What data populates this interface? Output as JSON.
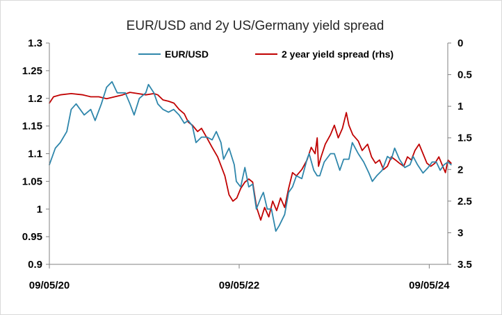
{
  "chart_data": {
    "type": "line",
    "title": "EUR/USD and 2y US/Germany yield spread",
    "xlabel": "",
    "ylabel": "",
    "x_ticks": [
      "09/05/20",
      "09/05/22",
      "09/05/24"
    ],
    "x_range": [
      "2020-05-09",
      "2024-08-01"
    ],
    "ylim_left": [
      0.9,
      1.3
    ],
    "y_ticks_left": [
      "0.9",
      "0.95",
      "1",
      "1.05",
      "1.1",
      "1.15",
      "1.2",
      "1.25",
      "1.3"
    ],
    "ylim_right": [
      0,
      3.5
    ],
    "y_ticks_right": [
      "0",
      "0.5",
      "1",
      "1.5",
      "2",
      "2.5",
      "3",
      "3.5"
    ],
    "right_axis_inverted": true,
    "grid": false,
    "legend_position": "top-center",
    "series": [
      {
        "name": "EUR/USD",
        "axis": "left",
        "color": "#2e86ab",
        "points": [
          [
            "2020-05-09",
            1.08
          ],
          [
            "2020-06-01",
            1.11
          ],
          [
            "2020-06-20",
            1.12
          ],
          [
            "2020-07-15",
            1.14
          ],
          [
            "2020-08-01",
            1.18
          ],
          [
            "2020-08-20",
            1.19
          ],
          [
            "2020-09-20",
            1.17
          ],
          [
            "2020-10-15",
            1.18
          ],
          [
            "2020-11-01",
            1.16
          ],
          [
            "2020-11-25",
            1.19
          ],
          [
            "2020-12-15",
            1.22
          ],
          [
            "2021-01-05",
            1.23
          ],
          [
            "2021-01-25",
            1.21
          ],
          [
            "2021-02-25",
            1.21
          ],
          [
            "2021-03-15",
            1.19
          ],
          [
            "2021-03-31",
            1.17
          ],
          [
            "2021-04-20",
            1.2
          ],
          [
            "2021-05-15",
            1.21
          ],
          [
            "2021-05-25",
            1.225
          ],
          [
            "2021-06-15",
            1.21
          ],
          [
            "2021-06-30",
            1.19
          ],
          [
            "2021-07-20",
            1.18
          ],
          [
            "2021-08-10",
            1.175
          ],
          [
            "2021-08-30",
            1.18
          ],
          [
            "2021-09-20",
            1.17
          ],
          [
            "2021-10-10",
            1.155
          ],
          [
            "2021-10-25",
            1.16
          ],
          [
            "2021-11-10",
            1.15
          ],
          [
            "2021-11-24",
            1.12
          ],
          [
            "2021-12-15",
            1.13
          ],
          [
            "2022-01-05",
            1.13
          ],
          [
            "2022-01-25",
            1.125
          ],
          [
            "2022-02-10",
            1.14
          ],
          [
            "2022-02-28",
            1.12
          ],
          [
            "2022-03-10",
            1.09
          ],
          [
            "2022-03-31",
            1.11
          ],
          [
            "2022-04-20",
            1.08
          ],
          [
            "2022-04-28",
            1.05
          ],
          [
            "2022-05-15",
            1.04
          ],
          [
            "2022-05-31",
            1.075
          ],
          [
            "2022-06-15",
            1.04
          ],
          [
            "2022-06-30",
            1.045
          ],
          [
            "2022-07-14",
            1.0
          ],
          [
            "2022-07-31",
            1.02
          ],
          [
            "2022-08-10",
            1.03
          ],
          [
            "2022-08-25",
            1.0
          ],
          [
            "2022-09-10",
            1.0
          ],
          [
            "2022-09-27",
            0.96
          ],
          [
            "2022-10-10",
            0.97
          ],
          [
            "2022-10-31",
            0.99
          ],
          [
            "2022-11-15",
            1.03
          ],
          [
            "2022-11-30",
            1.04
          ],
          [
            "2022-12-15",
            1.06
          ],
          [
            "2023-01-05",
            1.055
          ],
          [
            "2023-01-25",
            1.09
          ],
          [
            "2023-02-02",
            1.1
          ],
          [
            "2023-02-20",
            1.07
          ],
          [
            "2023-03-05",
            1.06
          ],
          [
            "2023-03-15",
            1.06
          ],
          [
            "2023-04-01",
            1.085
          ],
          [
            "2023-04-25",
            1.1
          ],
          [
            "2023-05-10",
            1.1
          ],
          [
            "2023-05-31",
            1.07
          ],
          [
            "2023-06-15",
            1.09
          ],
          [
            "2023-07-05",
            1.09
          ],
          [
            "2023-07-18",
            1.12
          ],
          [
            "2023-08-10",
            1.1
          ],
          [
            "2023-08-31",
            1.085
          ],
          [
            "2023-09-20",
            1.065
          ],
          [
            "2023-10-03",
            1.05
          ],
          [
            "2023-10-20",
            1.06
          ],
          [
            "2023-11-10",
            1.07
          ],
          [
            "2023-11-30",
            1.095
          ],
          [
            "2023-12-15",
            1.09
          ],
          [
            "2023-12-28",
            1.11
          ],
          [
            "2024-01-15",
            1.09
          ],
          [
            "2024-02-05",
            1.075
          ],
          [
            "2024-02-25",
            1.08
          ],
          [
            "2024-03-08",
            1.095
          ],
          [
            "2024-03-25",
            1.08
          ],
          [
            "2024-04-15",
            1.065
          ],
          [
            "2024-05-05",
            1.075
          ],
          [
            "2024-05-20",
            1.085
          ],
          [
            "2024-06-05",
            1.085
          ],
          [
            "2024-06-20",
            1.07
          ],
          [
            "2024-07-05",
            1.08
          ],
          [
            "2024-07-20",
            1.085
          ],
          [
            "2024-08-01",
            1.08
          ]
        ]
      },
      {
        "name": "2 year yield spread (rhs)",
        "axis": "right",
        "color": "#c00000",
        "points": [
          [
            "2020-05-09",
            0.95
          ],
          [
            "2020-05-25",
            0.85
          ],
          [
            "2020-06-20",
            0.82
          ],
          [
            "2020-08-01",
            0.8
          ],
          [
            "2020-09-15",
            0.82
          ],
          [
            "2020-10-15",
            0.85
          ],
          [
            "2020-11-15",
            0.85
          ],
          [
            "2020-12-15",
            0.88
          ],
          [
            "2021-01-15",
            0.85
          ],
          [
            "2021-02-15",
            0.82
          ],
          [
            "2021-03-15",
            0.78
          ],
          [
            "2021-04-15",
            0.8
          ],
          [
            "2021-05-15",
            0.82
          ],
          [
            "2021-06-15",
            0.8
          ],
          [
            "2021-06-30",
            0.82
          ],
          [
            "2021-07-20",
            0.9
          ],
          [
            "2021-08-10",
            0.92
          ],
          [
            "2021-08-31",
            0.95
          ],
          [
            "2021-09-20",
            1.05
          ],
          [
            "2021-10-10",
            1.12
          ],
          [
            "2021-10-25",
            1.25
          ],
          [
            "2021-11-10",
            1.3
          ],
          [
            "2021-11-30",
            1.4
          ],
          [
            "2021-12-15",
            1.35
          ],
          [
            "2022-01-05",
            1.5
          ],
          [
            "2022-01-25",
            1.65
          ],
          [
            "2022-02-15",
            1.8
          ],
          [
            "2022-03-01",
            1.95
          ],
          [
            "2022-03-15",
            2.1
          ],
          [
            "2022-03-31",
            2.4
          ],
          [
            "2022-04-15",
            2.5
          ],
          [
            "2022-04-30",
            2.45
          ],
          [
            "2022-05-15",
            2.3
          ],
          [
            "2022-05-31",
            2.2
          ],
          [
            "2022-06-15",
            2.15
          ],
          [
            "2022-06-30",
            2.2
          ],
          [
            "2022-07-15",
            2.6
          ],
          [
            "2022-07-31",
            2.8
          ],
          [
            "2022-08-15",
            2.6
          ],
          [
            "2022-08-31",
            2.75
          ],
          [
            "2022-09-15",
            2.5
          ],
          [
            "2022-09-30",
            2.65
          ],
          [
            "2022-10-15",
            2.45
          ],
          [
            "2022-10-31",
            2.6
          ],
          [
            "2022-11-15",
            2.3
          ],
          [
            "2022-11-30",
            2.05
          ],
          [
            "2022-12-15",
            2.1
          ],
          [
            "2023-01-05",
            2.0
          ],
          [
            "2023-01-25",
            1.85
          ],
          [
            "2023-02-10",
            1.65
          ],
          [
            "2023-02-25",
            1.75
          ],
          [
            "2023-03-05",
            1.5
          ],
          [
            "2023-03-10",
            1.95
          ],
          [
            "2023-03-20",
            1.8
          ],
          [
            "2023-04-05",
            1.6
          ],
          [
            "2023-04-25",
            1.45
          ],
          [
            "2023-05-10",
            1.3
          ],
          [
            "2023-05-25",
            1.5
          ],
          [
            "2023-06-10",
            1.35
          ],
          [
            "2023-06-25",
            1.1
          ],
          [
            "2023-07-05",
            1.3
          ],
          [
            "2023-07-20",
            1.45
          ],
          [
            "2023-08-10",
            1.55
          ],
          [
            "2023-08-25",
            1.7
          ],
          [
            "2023-09-15",
            1.6
          ],
          [
            "2023-09-30",
            1.8
          ],
          [
            "2023-10-15",
            1.9
          ],
          [
            "2023-10-31",
            1.85
          ],
          [
            "2023-11-15",
            2.0
          ],
          [
            "2023-11-30",
            1.95
          ],
          [
            "2023-12-15",
            1.8
          ],
          [
            "2023-12-31",
            1.85
          ],
          [
            "2024-01-15",
            1.9
          ],
          [
            "2024-02-01",
            1.95
          ],
          [
            "2024-02-15",
            1.8
          ],
          [
            "2024-03-01",
            1.85
          ],
          [
            "2024-03-15",
            1.7
          ],
          [
            "2024-03-31",
            1.6
          ],
          [
            "2024-04-15",
            1.75
          ],
          [
            "2024-04-30",
            1.9
          ],
          [
            "2024-05-15",
            1.95
          ],
          [
            "2024-05-31",
            1.9
          ],
          [
            "2024-06-15",
            1.8
          ],
          [
            "2024-06-30",
            1.95
          ],
          [
            "2024-07-10",
            2.05
          ],
          [
            "2024-07-20",
            1.85
          ],
          [
            "2024-08-01",
            1.9
          ]
        ]
      }
    ]
  }
}
